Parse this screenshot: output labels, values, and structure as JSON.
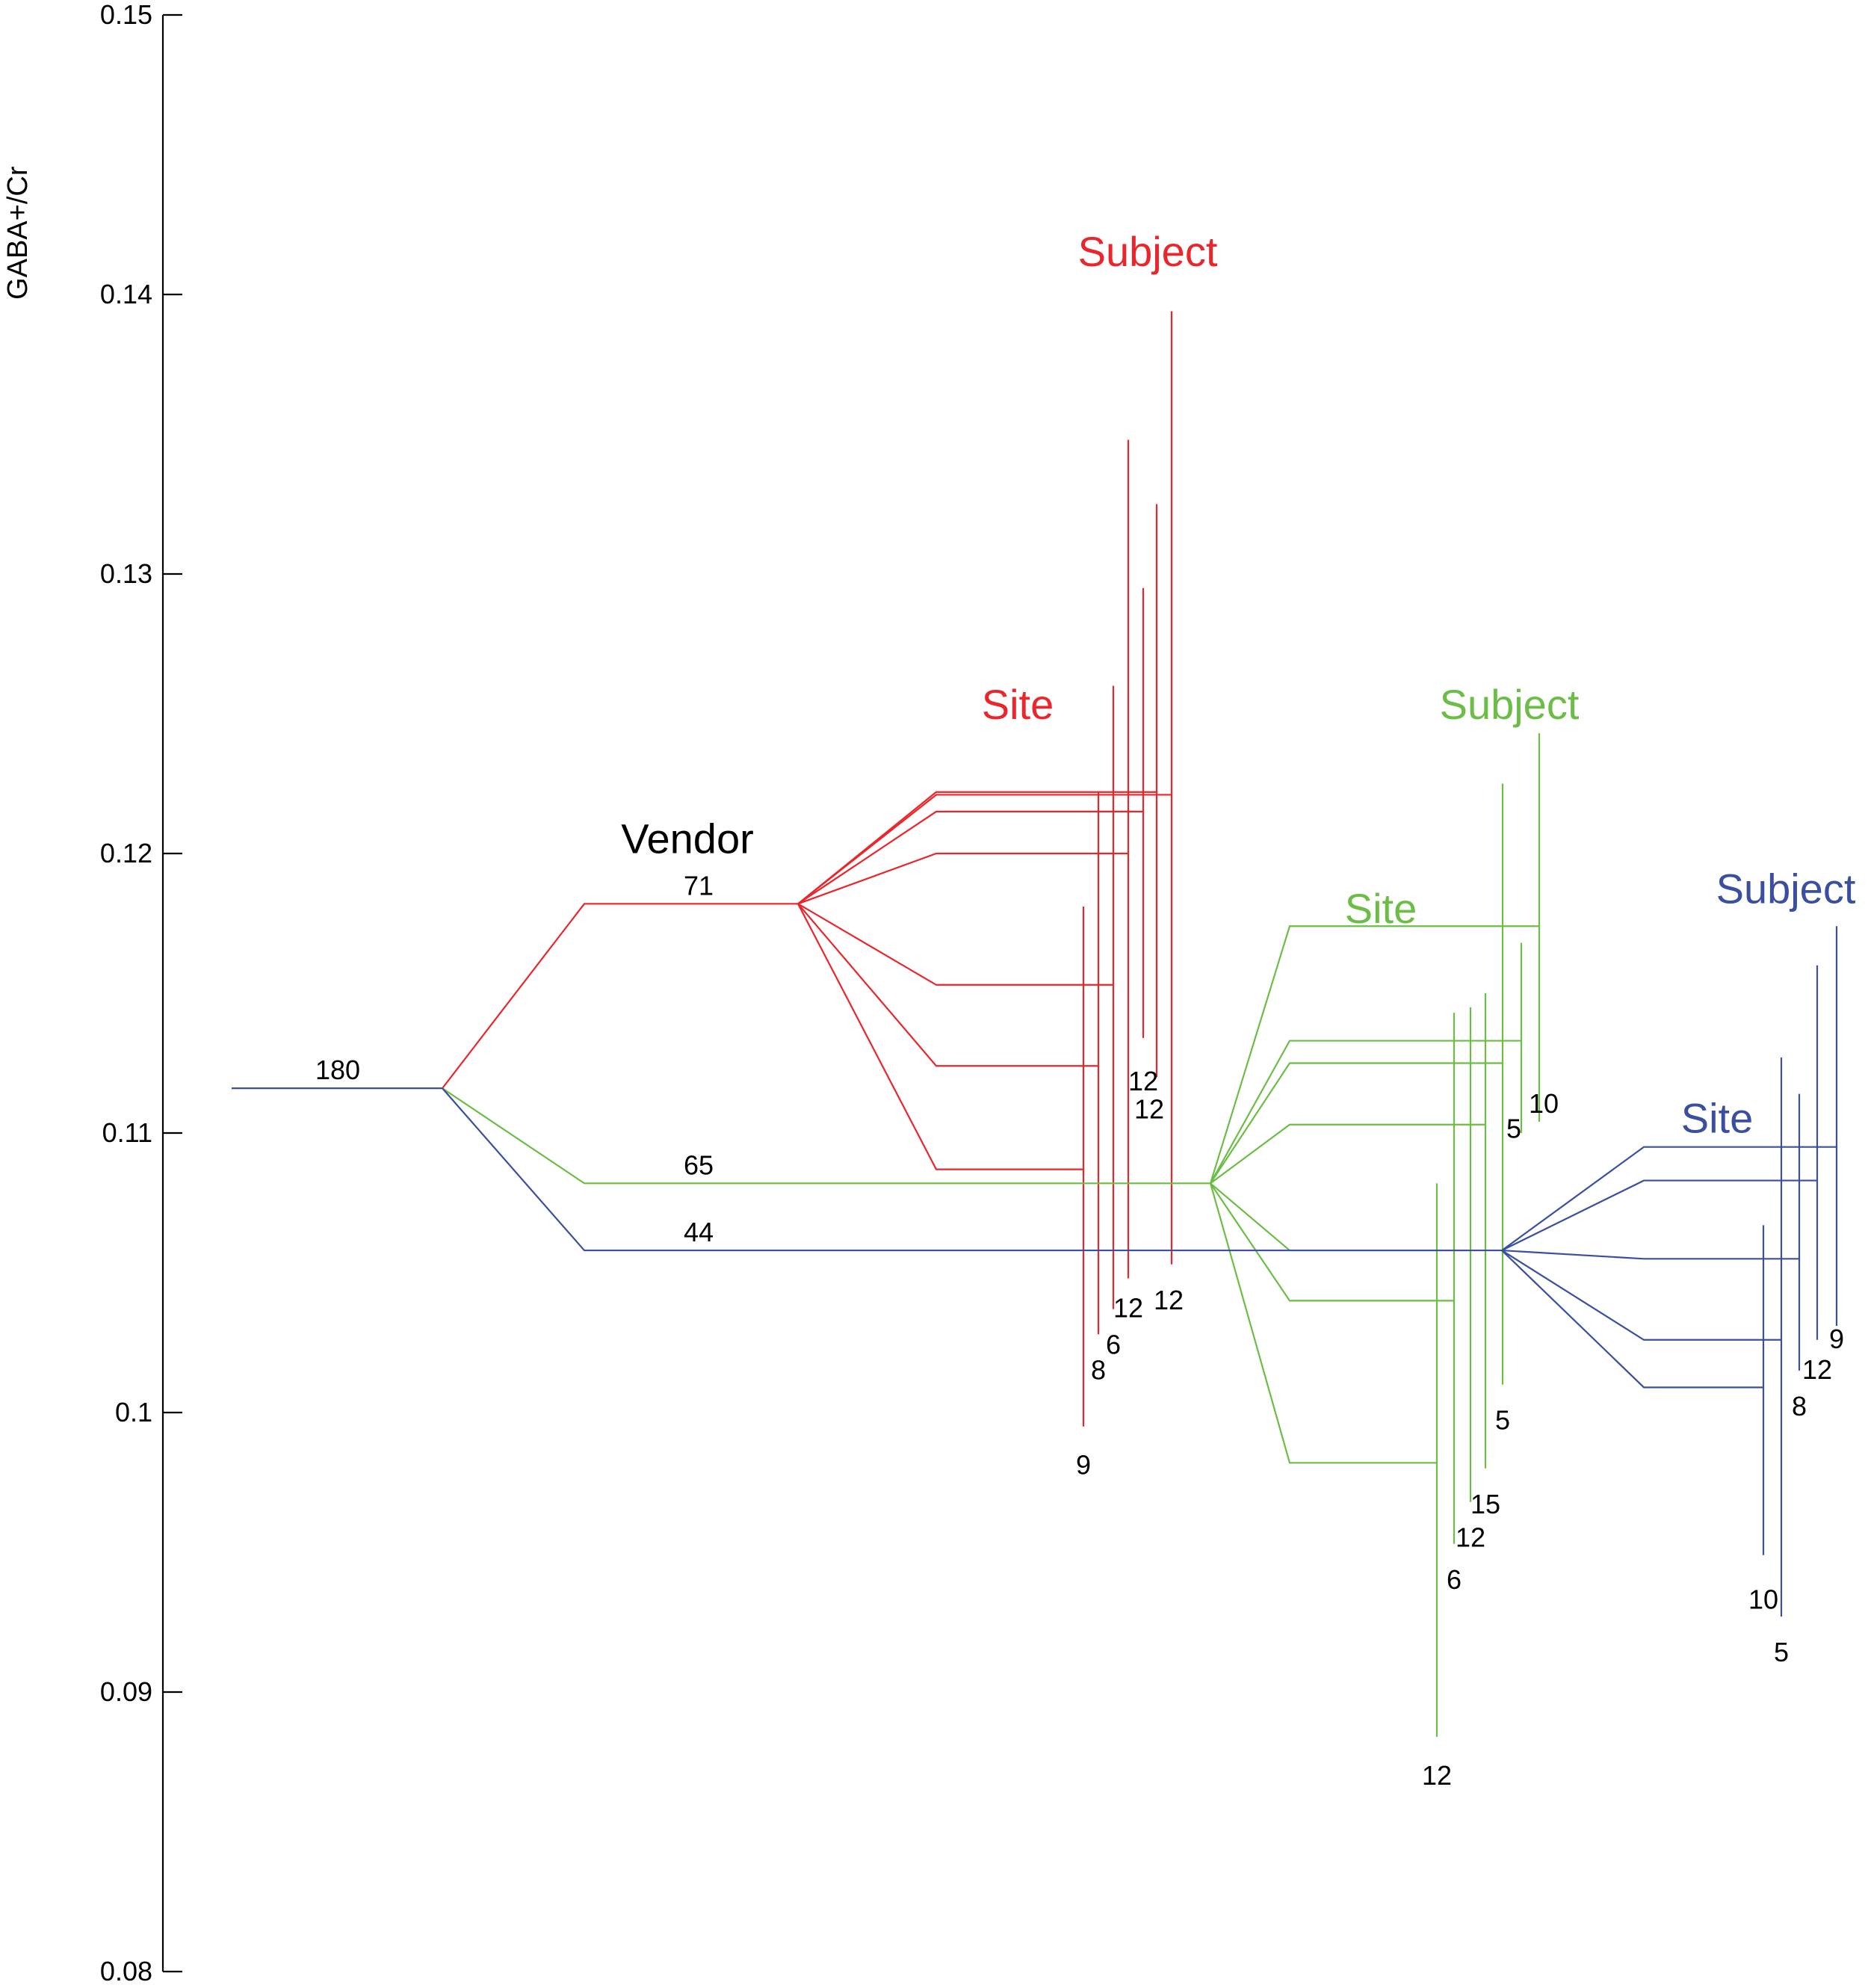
{
  "chart_data": {
    "type": "tree",
    "ylabel": "GABA+/Cr",
    "ylim": [
      0.08,
      0.15
    ],
    "yticks": [
      "0.08",
      "0.09",
      "0.1",
      "0.11",
      "0.12",
      "0.13",
      "0.14",
      "0.15"
    ],
    "colors": {
      "axis": "#000000",
      "red": "#e8262b",
      "green": "#6cbd45",
      "blue": "#3a4fa0"
    },
    "root": {
      "label": "180",
      "value": 0.1116
    },
    "level_labels": [
      {
        "text": "Vendor",
        "color": "axis",
        "value": 0.1205
      },
      {
        "text": "Site",
        "color": "red",
        "value": 0.1253
      },
      {
        "text": "Subject",
        "color": "red",
        "value": 0.1415
      },
      {
        "text": "Site",
        "color": "green",
        "value": 0.118
      },
      {
        "text": "Subject",
        "color": "green",
        "value": 0.1253
      },
      {
        "text": "Subject",
        "color": "blue",
        "value": 0.1187
      },
      {
        "text": "Site",
        "color": "blue",
        "value": 0.1105
      }
    ],
    "vendors": [
      {
        "color": "red",
        "label": "71",
        "value": 0.1182,
        "sites": [
          {
            "value": 0.1087,
            "label": "9",
            "min": 0.0995,
            "max": 0.1181
          },
          {
            "value": 0.1124,
            "label": "8",
            "min": 0.1028,
            "max": 0.1222
          },
          {
            "value": 0.1153,
            "label": "6",
            "min": 0.1037,
            "max": 0.126
          },
          {
            "value": 0.12,
            "label": "12",
            "min": 0.1048,
            "max": 0.1348
          },
          {
            "value": 0.1215,
            "label": "12",
            "min": 0.1134,
            "max": 0.1295
          },
          {
            "value": 0.1222,
            "label": "12",
            "min": 0.112,
            "max": 0.1325
          },
          {
            "value": 0.1221,
            "label": "12",
            "min": 0.1053,
            "max": 0.1394
          }
        ]
      },
      {
        "color": "green",
        "label": "65",
        "value": 0.1082,
        "sites": [
          {
            "value": 0.0982,
            "label": "12",
            "min": 0.0884,
            "max": 0.1082
          },
          {
            "value": 0.104,
            "label": "6",
            "min": 0.0953,
            "max": 0.1143
          },
          {
            "value": 0.1058,
            "label": "12",
            "min": 0.0968,
            "max": 0.1145
          },
          {
            "value": 0.1103,
            "label": "15",
            "min": 0.098,
            "max": 0.115
          },
          {
            "value": 0.1125,
            "label": "5",
            "min": 0.101,
            "max": 0.1225
          },
          {
            "value": 0.1133,
            "label": "5",
            "min": 0.11,
            "max": 0.1168
          },
          {
            "value": 0.1174,
            "label": "10",
            "min": 0.1104,
            "max": 0.1243
          }
        ]
      },
      {
        "color": "blue",
        "label": "44",
        "value": 0.1058,
        "sites": [
          {
            "value": 0.1009,
            "label": "10",
            "min": 0.0949,
            "max": 0.1067
          },
          {
            "value": 0.1026,
            "label": "5",
            "min": 0.0927,
            "max": 0.1127
          },
          {
            "value": 0.1055,
            "label": "8",
            "min": 0.1015,
            "max": 0.1114
          },
          {
            "value": 0.1083,
            "label": "12",
            "min": 0.1026,
            "max": 0.116
          },
          {
            "value": 0.1095,
            "label": "9",
            "min": 0.1031,
            "max": 0.1174
          }
        ]
      }
    ]
  }
}
